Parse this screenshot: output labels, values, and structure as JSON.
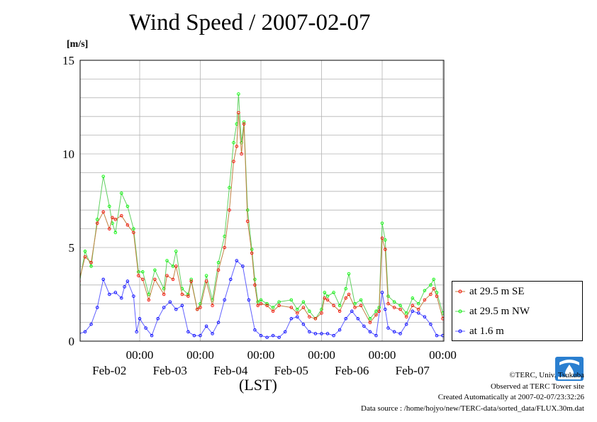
{
  "header": {
    "title": "Wind Speed / 2007-02-07",
    "unit": "[m/s]"
  },
  "xaxis": {
    "label": "(LST)"
  },
  "legend": {
    "items": [
      "at 29.5 m SE",
      "at 29.5 m NW",
      "at 1.6 m"
    ]
  },
  "credits": {
    "copyright": "©TERC, Univ. Tsukuba",
    "observed": "Observed at TERC Tower site",
    "created": "Created Automatically at 2007-02-07/23:32:26",
    "source": "Data source : /home/hojyo/new/TERC-data/sorted_data/FLUX.30m.dat"
  },
  "chart_data": {
    "type": "line",
    "title": "Wind Speed / 2007-02-07",
    "ylabel": "[m/s]",
    "xlabel": "(LST)",
    "ylim": [
      0,
      15
    ],
    "yticks": [
      0,
      5,
      10,
      15
    ],
    "xlim": [
      0,
      6
    ],
    "x_unit": "days since 2007-02-01 00:00 LST",
    "time_ticks": [
      {
        "x": 1,
        "time": "00:00",
        "date": "Feb-02"
      },
      {
        "x": 2,
        "time": "00:00",
        "date": "Feb-03"
      },
      {
        "x": 3,
        "time": "00:00",
        "date": "Feb-04"
      },
      {
        "x": 4,
        "time": "00:00",
        "date": "Feb-05"
      },
      {
        "x": 5,
        "time": "00:00",
        "date": "Feb-06"
      },
      {
        "x": 6,
        "time": "00:00",
        "date": "Feb-07"
      }
    ],
    "grid": true,
    "legend_position": "right",
    "series": [
      {
        "name": "at 29.5 m SE",
        "color": "#ff0000",
        "line_color": "#c08040",
        "points": [
          [
            0.0,
            3.2
          ],
          [
            0.1,
            4.5
          ],
          [
            0.2,
            4.2
          ],
          [
            0.3,
            6.3
          ],
          [
            0.4,
            6.9
          ],
          [
            0.5,
            6.0
          ],
          [
            0.55,
            6.6
          ],
          [
            0.6,
            6.5
          ],
          [
            0.7,
            6.7
          ],
          [
            0.8,
            6.2
          ],
          [
            0.9,
            5.8
          ],
          [
            0.98,
            3.5
          ],
          [
            1.05,
            3.3
          ],
          [
            1.15,
            2.2
          ],
          [
            1.25,
            3.3
          ],
          [
            1.4,
            2.5
          ],
          [
            1.45,
            3.5
          ],
          [
            1.55,
            3.3
          ],
          [
            1.6,
            4.0
          ],
          [
            1.7,
            2.5
          ],
          [
            1.8,
            2.4
          ],
          [
            1.85,
            3.2
          ],
          [
            1.95,
            1.7
          ],
          [
            2.0,
            1.8
          ],
          [
            2.1,
            3.2
          ],
          [
            2.2,
            1.9
          ],
          [
            2.3,
            3.8
          ],
          [
            2.4,
            5.0
          ],
          [
            2.48,
            7.0
          ],
          [
            2.55,
            9.6
          ],
          [
            2.6,
            10.4
          ],
          [
            2.63,
            12.2
          ],
          [
            2.68,
            10.0
          ],
          [
            2.72,
            11.6
          ],
          [
            2.78,
            6.4
          ],
          [
            2.85,
            4.7
          ],
          [
            2.9,
            3.0
          ],
          [
            2.95,
            1.9
          ],
          [
            3.0,
            2.0
          ],
          [
            3.1,
            1.9
          ],
          [
            3.2,
            1.6
          ],
          [
            3.3,
            1.9
          ],
          [
            3.5,
            1.8
          ],
          [
            3.6,
            1.5
          ],
          [
            3.7,
            1.8
          ],
          [
            3.8,
            1.3
          ],
          [
            3.9,
            1.2
          ],
          [
            4.0,
            1.5
          ],
          [
            4.05,
            2.3
          ],
          [
            4.1,
            2.2
          ],
          [
            4.2,
            1.9
          ],
          [
            4.3,
            1.6
          ],
          [
            4.4,
            2.3
          ],
          [
            4.45,
            2.5
          ],
          [
            4.55,
            1.8
          ],
          [
            4.65,
            1.9
          ],
          [
            4.8,
            1.0
          ],
          [
            4.9,
            1.4
          ],
          [
            4.95,
            1.6
          ],
          [
            5.0,
            5.5
          ],
          [
            5.05,
            4.9
          ],
          [
            5.1,
            2.0
          ],
          [
            5.2,
            1.8
          ],
          [
            5.3,
            1.7
          ],
          [
            5.4,
            1.3
          ],
          [
            5.5,
            1.9
          ],
          [
            5.6,
            1.7
          ],
          [
            5.7,
            2.2
          ],
          [
            5.8,
            2.5
          ],
          [
            5.85,
            2.8
          ],
          [
            5.9,
            2.4
          ],
          [
            6.0,
            1.2
          ]
        ]
      },
      {
        "name": "at 29.5 m NW",
        "color": "#00ff00",
        "line_color": "#60d060",
        "points": [
          [
            0.0,
            3.0
          ],
          [
            0.1,
            4.8
          ],
          [
            0.2,
            4.0
          ],
          [
            0.3,
            6.5
          ],
          [
            0.4,
            8.8
          ],
          [
            0.5,
            7.2
          ],
          [
            0.55,
            6.3
          ],
          [
            0.6,
            5.8
          ],
          [
            0.7,
            7.9
          ],
          [
            0.8,
            7.2
          ],
          [
            0.9,
            6.0
          ],
          [
            0.98,
            3.7
          ],
          [
            1.05,
            3.7
          ],
          [
            1.15,
            2.5
          ],
          [
            1.25,
            3.8
          ],
          [
            1.4,
            2.8
          ],
          [
            1.45,
            4.3
          ],
          [
            1.55,
            4.0
          ],
          [
            1.6,
            4.8
          ],
          [
            1.7,
            2.8
          ],
          [
            1.8,
            2.5
          ],
          [
            1.85,
            3.3
          ],
          [
            1.95,
            1.7
          ],
          [
            2.0,
            2.0
          ],
          [
            2.1,
            3.5
          ],
          [
            2.2,
            2.2
          ],
          [
            2.3,
            4.2
          ],
          [
            2.4,
            5.6
          ],
          [
            2.48,
            8.2
          ],
          [
            2.55,
            10.6
          ],
          [
            2.6,
            11.6
          ],
          [
            2.63,
            13.2
          ],
          [
            2.68,
            10.6
          ],
          [
            2.72,
            11.7
          ],
          [
            2.78,
            7.0
          ],
          [
            2.85,
            4.9
          ],
          [
            2.9,
            3.3
          ],
          [
            2.95,
            2.1
          ],
          [
            3.0,
            2.2
          ],
          [
            3.1,
            2.0
          ],
          [
            3.2,
            1.8
          ],
          [
            3.3,
            2.1
          ],
          [
            3.5,
            2.2
          ],
          [
            3.6,
            1.7
          ],
          [
            3.7,
            2.1
          ],
          [
            3.8,
            1.6
          ],
          [
            3.9,
            1.2
          ],
          [
            4.0,
            1.7
          ],
          [
            4.05,
            2.6
          ],
          [
            4.1,
            2.4
          ],
          [
            4.2,
            2.6
          ],
          [
            4.3,
            1.9
          ],
          [
            4.4,
            2.8
          ],
          [
            4.45,
            3.6
          ],
          [
            4.55,
            2.0
          ],
          [
            4.65,
            2.2
          ],
          [
            4.8,
            1.2
          ],
          [
            4.9,
            1.6
          ],
          [
            4.95,
            1.8
          ],
          [
            5.0,
            6.3
          ],
          [
            5.05,
            5.4
          ],
          [
            5.1,
            2.4
          ],
          [
            5.2,
            2.1
          ],
          [
            5.3,
            1.9
          ],
          [
            5.4,
            1.5
          ],
          [
            5.5,
            2.3
          ],
          [
            5.6,
            2.0
          ],
          [
            5.7,
            2.7
          ],
          [
            5.8,
            3.0
          ],
          [
            5.85,
            3.3
          ],
          [
            5.9,
            2.6
          ],
          [
            6.0,
            1.5
          ]
        ]
      },
      {
        "name": "at 1.6 m",
        "color": "#0000ff",
        "line_color": "#6060ff",
        "points": [
          [
            0.0,
            0.4
          ],
          [
            0.1,
            0.5
          ],
          [
            0.2,
            0.9
          ],
          [
            0.3,
            1.8
          ],
          [
            0.4,
            3.3
          ],
          [
            0.5,
            2.5
          ],
          [
            0.6,
            2.6
          ],
          [
            0.7,
            2.3
          ],
          [
            0.75,
            2.9
          ],
          [
            0.8,
            3.2
          ],
          [
            0.9,
            2.4
          ],
          [
            0.95,
            0.5
          ],
          [
            1.0,
            1.2
          ],
          [
            1.1,
            0.7
          ],
          [
            1.2,
            0.3
          ],
          [
            1.3,
            1.2
          ],
          [
            1.4,
            1.8
          ],
          [
            1.5,
            2.1
          ],
          [
            1.6,
            1.7
          ],
          [
            1.7,
            1.9
          ],
          [
            1.8,
            0.5
          ],
          [
            1.9,
            0.3
          ],
          [
            2.0,
            0.3
          ],
          [
            2.1,
            0.8
          ],
          [
            2.2,
            0.4
          ],
          [
            2.3,
            1.0
          ],
          [
            2.4,
            2.2
          ],
          [
            2.5,
            3.3
          ],
          [
            2.6,
            4.3
          ],
          [
            2.7,
            4.0
          ],
          [
            2.8,
            2.2
          ],
          [
            2.9,
            0.6
          ],
          [
            3.0,
            0.3
          ],
          [
            3.1,
            0.2
          ],
          [
            3.2,
            0.3
          ],
          [
            3.3,
            0.2
          ],
          [
            3.4,
            0.5
          ],
          [
            3.5,
            1.2
          ],
          [
            3.6,
            1.3
          ],
          [
            3.7,
            0.9
          ],
          [
            3.8,
            0.5
          ],
          [
            3.9,
            0.4
          ],
          [
            4.0,
            0.4
          ],
          [
            4.1,
            0.4
          ],
          [
            4.2,
            0.3
          ],
          [
            4.3,
            0.6
          ],
          [
            4.4,
            1.2
          ],
          [
            4.5,
            1.6
          ],
          [
            4.6,
            1.2
          ],
          [
            4.7,
            0.8
          ],
          [
            4.8,
            0.5
          ],
          [
            4.9,
            0.3
          ],
          [
            5.0,
            2.6
          ],
          [
            5.05,
            1.7
          ],
          [
            5.1,
            0.7
          ],
          [
            5.2,
            0.5
          ],
          [
            5.3,
            0.4
          ],
          [
            5.4,
            0.9
          ],
          [
            5.5,
            1.6
          ],
          [
            5.6,
            1.5
          ],
          [
            5.7,
            1.3
          ],
          [
            5.8,
            0.9
          ],
          [
            5.9,
            0.3
          ],
          [
            6.0,
            0.3
          ]
        ]
      }
    ]
  }
}
